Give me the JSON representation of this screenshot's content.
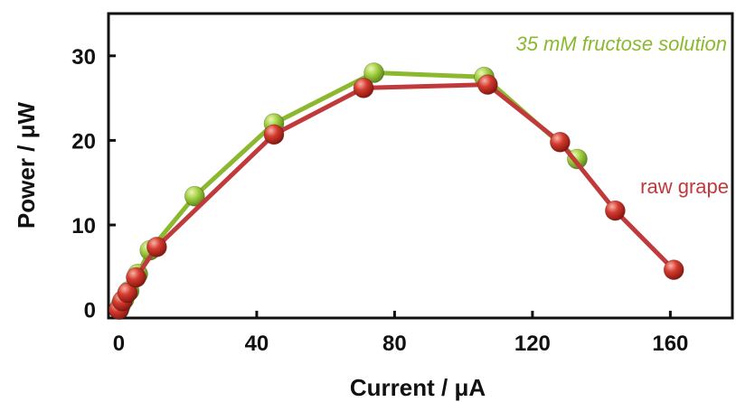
{
  "chart_data": {
    "type": "line",
    "title": "",
    "xlabel": "Current / μA",
    "ylabel": "Power / μW",
    "xlim": [
      -3,
      178
    ],
    "ylim": [
      -1,
      35
    ],
    "xticks": [
      "0",
      "40",
      "80",
      "120",
      "160"
    ],
    "xtick_values": [
      0,
      40,
      80,
      120,
      160
    ],
    "yticks": [
      "0",
      "10",
      "20",
      "30"
    ],
    "ytick_values": [
      0,
      10,
      20,
      30
    ],
    "grid": false,
    "series": [
      {
        "name": "35 mM fructose solution",
        "color": "#8cb830",
        "marker_color": "#9ccc3c",
        "x": [
          0,
          0.5,
          1.5,
          3,
          5.5,
          9,
          22,
          45,
          74,
          106,
          133
        ],
        "y": [
          0,
          0.5,
          1.2,
          2.2,
          4.2,
          7.0,
          13.4,
          22.0,
          28.0,
          27.5,
          17.8
        ]
      },
      {
        "name": "raw grape",
        "color": "#c0393b",
        "marker_color": "#d03a30",
        "x": [
          0,
          1,
          2.5,
          5,
          11,
          45,
          71,
          107,
          128,
          144,
          161
        ],
        "y": [
          0,
          1.0,
          2.0,
          3.8,
          7.4,
          20.7,
          26.2,
          26.6,
          19.8,
          11.7,
          4.7
        ]
      }
    ]
  }
}
